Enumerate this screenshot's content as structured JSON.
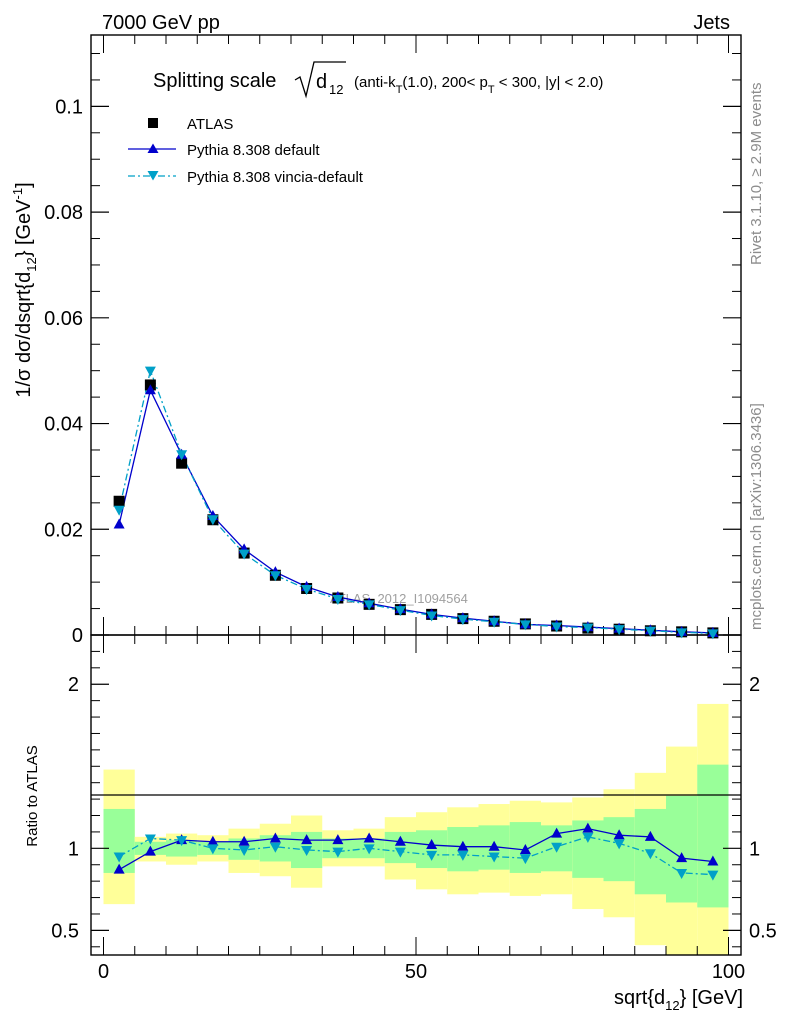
{
  "header": {
    "left": "7000 GeV pp",
    "right": "Jets"
  },
  "side_labels": {
    "rivet": "Rivet 3.1.10, ≥ 2.9M events",
    "mcplots": "mcplots.cern.ch [arXiv:1306.3436]"
  },
  "title": {
    "prefix": "Splitting scale",
    "radicand": "d",
    "radicand_sub": "12",
    "details_1": "(anti-k",
    "details_1_sub": "T",
    "details_2": "(1.0), 200< p",
    "details_2_sub": "T",
    "details_3": " < 300, |y| < 2.0)"
  },
  "analysis_tag": "ATLAS_2012_I1094564",
  "axes": {
    "ylabel_main": "1/σ dσ/dsqrt{d",
    "ylabel_main_sub": "12",
    "ylabel_main_end": "} [GeV",
    "ylabel_main_sup": "-1",
    "ylabel_main_close": "]",
    "ylabel_ratio": "Ratio to ATLAS",
    "xlabel": "sqrt{d",
    "xlabel_sub": "12",
    "xlabel_end": "} [GeV]"
  },
  "colors": {
    "atlas": "#000000",
    "default": "#0000cc",
    "vincia": "#00a0c8",
    "band_inner": "#99ff99",
    "band_outer": "#ffff99"
  },
  "chart_data": [
    {
      "type": "line",
      "panel": "main",
      "xlim": [
        -2,
        102
      ],
      "ylim": [
        0,
        0.1135
      ],
      "y_ticks": [
        0,
        0.02,
        0.04,
        0.06,
        0.08,
        0.1
      ],
      "y_tick_labels": [
        "0",
        "0.02",
        "0.04",
        "0.06",
        "0.08",
        "0.1"
      ],
      "x": [
        2.5,
        7.5,
        12.5,
        17.5,
        22.5,
        27.5,
        32.5,
        37.5,
        42.5,
        47.5,
        52.5,
        57.5,
        62.5,
        67.5,
        72.5,
        77.5,
        82.5,
        87.5,
        92.5,
        97.5
      ],
      "legend_position": "top-left",
      "series": [
        {
          "name": "ATLAS",
          "marker": "square",
          "values": [
            0.0253,
            0.0473,
            0.0325,
            0.0218,
            0.0155,
            0.0113,
            0.0088,
            0.007,
            0.0058,
            0.0048,
            0.0039,
            0.0031,
            0.0026,
            0.0021,
            0.0017,
            0.0013,
            0.0011,
            0.0008,
            0.0006,
            0.0004
          ]
        },
        {
          "name": "Pythia 8.308 default",
          "marker": "triangle-up",
          "values": [
            0.0209,
            0.0463,
            0.0341,
            0.0225,
            0.0162,
            0.0119,
            0.0091,
            0.0072,
            0.006,
            0.0049,
            0.0039,
            0.0032,
            0.0026,
            0.002,
            0.0018,
            0.0015,
            0.0012,
            0.0009,
            0.0006,
            0.0004
          ]
        },
        {
          "name": "Pythia 8.308 vincia-default",
          "marker": "triangle-down",
          "values": [
            0.0237,
            0.05,
            0.0342,
            0.0219,
            0.0154,
            0.0113,
            0.0087,
            0.0068,
            0.0058,
            0.0047,
            0.0037,
            0.003,
            0.0025,
            0.002,
            0.0016,
            0.0014,
            0.0011,
            0.0008,
            0.0005,
            0.0003
          ]
        }
      ]
    },
    {
      "type": "line",
      "panel": "ratio",
      "xlim": [
        -2,
        102
      ],
      "ylim": [
        0.35,
        2.3
      ],
      "y_ticks": [
        0.5,
        1,
        2
      ],
      "y_tick_labels": [
        "0.5",
        "1",
        "2"
      ],
      "x_ticks": [
        0,
        50,
        100
      ],
      "x_tick_labels": [
        "0",
        "50",
        "100"
      ],
      "x": [
        2.5,
        7.5,
        12.5,
        17.5,
        22.5,
        27.5,
        32.5,
        37.5,
        42.5,
        47.5,
        52.5,
        57.5,
        62.5,
        67.5,
        72.5,
        77.5,
        82.5,
        87.5,
        92.5,
        97.5
      ],
      "bins": [
        [
          0,
          5
        ],
        [
          5,
          10
        ],
        [
          10,
          15
        ],
        [
          15,
          20
        ],
        [
          20,
          25
        ],
        [
          25,
          30
        ],
        [
          30,
          35
        ],
        [
          35,
          40
        ],
        [
          40,
          45
        ],
        [
          45,
          50
        ],
        [
          50,
          55
        ],
        [
          55,
          60
        ],
        [
          60,
          65
        ],
        [
          65,
          70
        ],
        [
          70,
          75
        ],
        [
          75,
          80
        ],
        [
          80,
          85
        ],
        [
          85,
          90
        ],
        [
          90,
          95
        ],
        [
          95,
          100
        ]
      ],
      "band_outer": [
        [
          0.66,
          1.48
        ],
        [
          0.92,
          1.07
        ],
        [
          0.9,
          1.09
        ],
        [
          0.92,
          1.08
        ],
        [
          0.85,
          1.12
        ],
        [
          0.83,
          1.15
        ],
        [
          0.76,
          1.2
        ],
        [
          0.89,
          1.11
        ],
        [
          0.89,
          1.12
        ],
        [
          0.81,
          1.19
        ],
        [
          0.75,
          1.22
        ],
        [
          0.72,
          1.25
        ],
        [
          0.73,
          1.27
        ],
        [
          0.71,
          1.29
        ],
        [
          0.72,
          1.28
        ],
        [
          0.63,
          1.31
        ],
        [
          0.58,
          1.36
        ],
        [
          0.41,
          1.46
        ],
        [
          0.34,
          1.62
        ],
        [
          0.32,
          1.88
        ]
      ],
      "band_inner": [
        [
          0.85,
          1.24
        ],
        [
          0.96,
          1.04
        ],
        [
          0.95,
          1.05
        ],
        [
          0.96,
          1.04
        ],
        [
          0.93,
          1.06
        ],
        [
          0.92,
          1.08
        ],
        [
          0.88,
          1.1
        ],
        [
          0.94,
          1.06
        ],
        [
          0.94,
          1.06
        ],
        [
          0.91,
          1.1
        ],
        [
          0.88,
          1.11
        ],
        [
          0.86,
          1.13
        ],
        [
          0.87,
          1.14
        ],
        [
          0.85,
          1.16
        ],
        [
          0.86,
          1.14
        ],
        [
          0.82,
          1.17
        ],
        [
          0.8,
          1.19
        ],
        [
          0.72,
          1.24
        ],
        [
          0.67,
          1.32
        ],
        [
          0.64,
          1.51
        ]
      ],
      "series": [
        {
          "name": "Pythia 8.308 default",
          "marker": "triangle-up",
          "values": [
            0.87,
            0.98,
            1.05,
            1.04,
            1.04,
            1.06,
            1.05,
            1.05,
            1.06,
            1.04,
            1.02,
            1.01,
            1.01,
            0.99,
            1.09,
            1.12,
            1.08,
            1.07,
            0.94,
            0.92
          ]
        },
        {
          "name": "Pythia 8.308 vincia-default",
          "marker": "triangle-down",
          "values": [
            0.95,
            1.06,
            1.05,
            1.0,
            0.99,
            1.01,
            0.99,
            0.98,
            1.0,
            0.98,
            0.96,
            0.96,
            0.95,
            0.94,
            1.01,
            1.07,
            1.03,
            0.97,
            0.85,
            0.84
          ]
        }
      ]
    }
  ]
}
